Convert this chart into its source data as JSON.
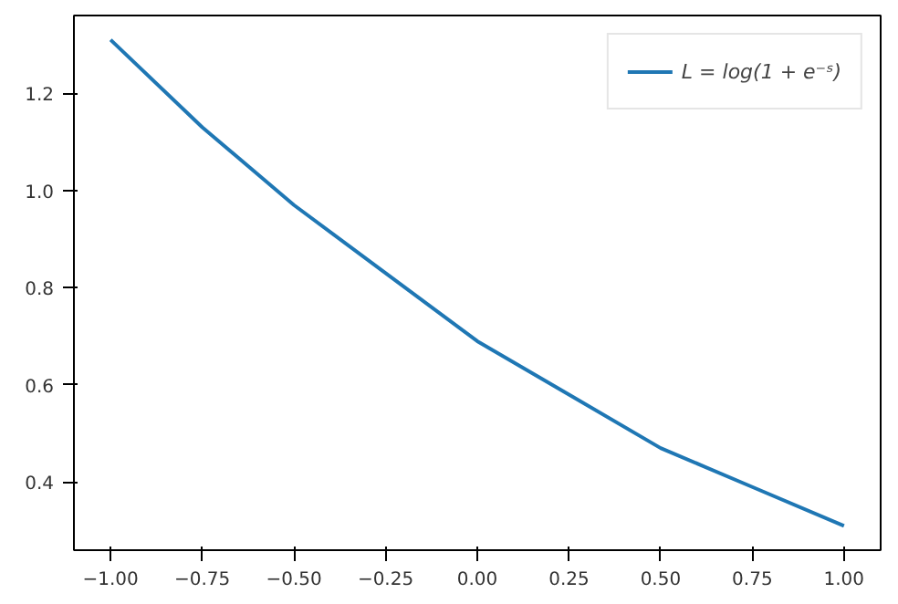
{
  "chart_data": {
    "type": "line",
    "x": [
      -1.0,
      -0.75,
      -0.5,
      -0.25,
      0.0,
      0.25,
      0.5,
      0.75,
      1.0
    ],
    "series": [
      {
        "name": "L = log(1 + e⁻ˢ)",
        "color": "#1f77b4",
        "values": [
          1.31,
          1.13,
          0.97,
          0.83,
          0.69,
          0.58,
          0.47,
          0.39,
          0.31
        ]
      }
    ],
    "xlim": [
      -1.1,
      1.1
    ],
    "ylim": [
      0.26,
      1.36
    ],
    "xticks": [
      {
        "value": -1,
        "label": "−1.00"
      },
      {
        "value": -0.75,
        "label": "−0.75"
      },
      {
        "value": -0.5,
        "label": "−0.50"
      },
      {
        "value": -0.25,
        "label": "−0.25"
      },
      {
        "value": 0,
        "label": "0.00"
      },
      {
        "value": 0.25,
        "label": "0.25"
      },
      {
        "value": 0.5,
        "label": "0.50"
      },
      {
        "value": 0.75,
        "label": "0.75"
      },
      {
        "value": 1,
        "label": "1.00"
      }
    ],
    "yticks": [
      {
        "value": 0.4,
        "label": "0.4"
      },
      {
        "value": 0.6,
        "label": "0.6"
      },
      {
        "value": 0.8,
        "label": "0.8"
      },
      {
        "value": 1.0,
        "label": "1.0"
      },
      {
        "value": 1.2,
        "label": "1.2"
      }
    ],
    "legend": "top right",
    "grid": false,
    "marker": "none",
    "line_style": "solid"
  }
}
